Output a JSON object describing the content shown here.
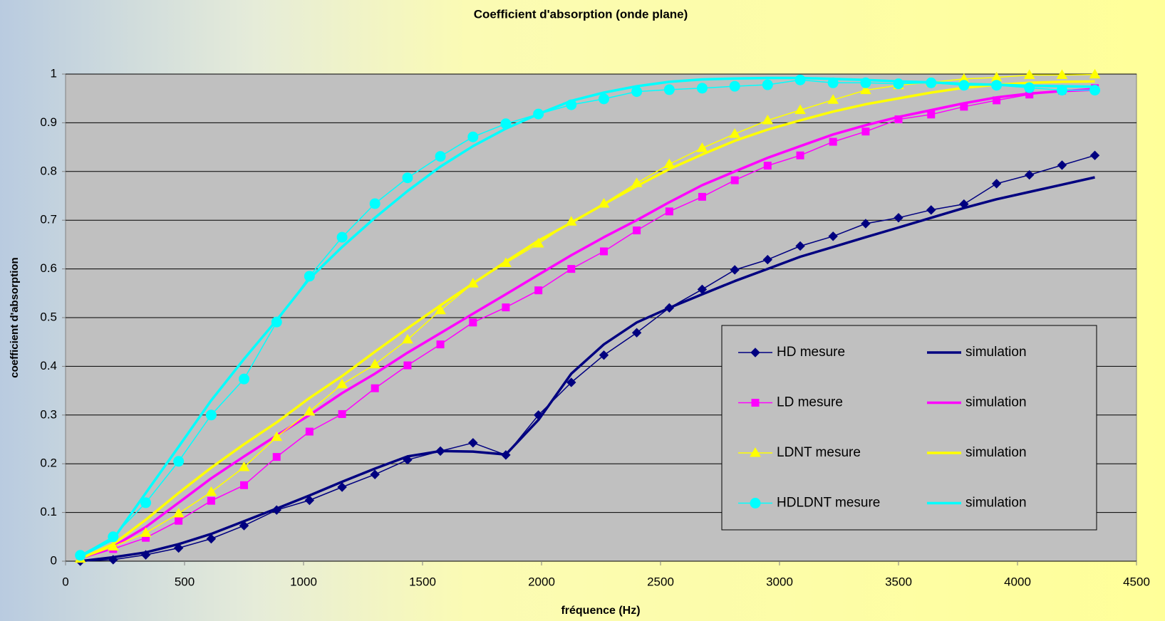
{
  "chart_data": {
    "type": "line",
    "title": "Coefficient d'absorption (onde plane)",
    "x_label": "fréquence (Hz)",
    "y_label": "coefficient d'absorption",
    "x": [
      62,
      200,
      337,
      475,
      612,
      750,
      887,
      1025,
      1162,
      1300,
      1437,
      1575,
      1712,
      1850,
      1987,
      2125,
      2262,
      2400,
      2537,
      2675,
      2812,
      2950,
      3087,
      3225,
      3362,
      3500,
      3637,
      3775,
      3912,
      4050,
      4187,
      4325
    ],
    "series": [
      {
        "name": "HD mesure",
        "color": "#000080",
        "marker": "diamond",
        "values": [
          0.0,
          0.003,
          0.013,
          0.027,
          0.046,
          0.073,
          0.105,
          0.125,
          0.152,
          0.178,
          0.208,
          0.226,
          0.243,
          0.218,
          0.3,
          0.367,
          0.423,
          0.469,
          0.52,
          0.558,
          0.598,
          0.619,
          0.647,
          0.667,
          0.693,
          0.705,
          0.721,
          0.733,
          0.775,
          0.793,
          0.813,
          0.833
        ]
      },
      {
        "name": "simulation",
        "color": "#000080",
        "values": [
          0.0,
          0.008,
          0.018,
          0.035,
          0.056,
          0.082,
          0.108,
          0.135,
          0.163,
          0.19,
          0.215,
          0.226,
          0.225,
          0.219,
          0.29,
          0.385,
          0.445,
          0.49,
          0.52,
          0.548,
          0.575,
          0.6,
          0.625,
          0.645,
          0.665,
          0.685,
          0.705,
          0.725,
          0.743,
          0.758,
          0.773,
          0.788
        ]
      },
      {
        "name": "LD mesure",
        "color": "#ff00ff",
        "marker": "square",
        "values": [
          0.005,
          0.025,
          0.048,
          0.083,
          0.124,
          0.156,
          0.214,
          0.266,
          0.302,
          0.355,
          0.402,
          0.445,
          0.49,
          0.521,
          0.556,
          0.6,
          0.636,
          0.679,
          0.718,
          0.748,
          0.782,
          0.812,
          0.833,
          0.861,
          0.882,
          0.907,
          0.917,
          0.933,
          0.946,
          0.958,
          0.966,
          0.971
        ]
      },
      {
        "name": "simulation",
        "color": "#ff00ff",
        "values": [
          0.005,
          0.03,
          0.07,
          0.12,
          0.17,
          0.215,
          0.258,
          0.3,
          0.345,
          0.385,
          0.428,
          0.468,
          0.508,
          0.548,
          0.588,
          0.628,
          0.665,
          0.7,
          0.737,
          0.772,
          0.8,
          0.828,
          0.852,
          0.876,
          0.895,
          0.912,
          0.926,
          0.94,
          0.952,
          0.96,
          0.965,
          0.968
        ]
      },
      {
        "name": "LDNT mesure",
        "color": "#ffff00",
        "marker": "triangle",
        "values": [
          0.005,
          0.03,
          0.058,
          0.098,
          0.142,
          0.193,
          0.255,
          0.307,
          0.363,
          0.404,
          0.455,
          0.515,
          0.57,
          0.612,
          0.652,
          0.697,
          0.734,
          0.776,
          0.815,
          0.848,
          0.877,
          0.905,
          0.926,
          0.947,
          0.967,
          0.977,
          0.983,
          0.99,
          0.993,
          0.998,
          0.998,
          0.999
        ]
      },
      {
        "name": "simulation",
        "color": "#ffff00",
        "values": [
          0.005,
          0.035,
          0.085,
          0.14,
          0.192,
          0.24,
          0.285,
          0.335,
          0.38,
          0.43,
          0.478,
          0.525,
          0.57,
          0.615,
          0.658,
          0.695,
          0.733,
          0.77,
          0.805,
          0.835,
          0.863,
          0.886,
          0.905,
          0.923,
          0.938,
          0.95,
          0.962,
          0.972,
          0.978,
          0.982,
          0.984,
          0.985
        ]
      },
      {
        "name": "HDLDNT mesure",
        "color": "#00ffff",
        "marker": "circle",
        "values": [
          0.012,
          0.05,
          0.12,
          0.205,
          0.3,
          0.374,
          0.491,
          0.585,
          0.665,
          0.734,
          0.787,
          0.831,
          0.871,
          0.898,
          0.918,
          0.937,
          0.949,
          0.964,
          0.968,
          0.971,
          0.975,
          0.978,
          0.988,
          0.982,
          0.982,
          0.98,
          0.982,
          0.977,
          0.977,
          0.972,
          0.967,
          0.967
        ]
      },
      {
        "name": "simulation",
        "color": "#00ffff",
        "values": [
          0.01,
          0.045,
          0.14,
          0.235,
          0.33,
          0.415,
          0.495,
          0.58,
          0.645,
          0.705,
          0.76,
          0.81,
          0.852,
          0.888,
          0.918,
          0.945,
          0.962,
          0.975,
          0.984,
          0.989,
          0.991,
          0.992,
          0.992,
          0.99,
          0.988,
          0.985,
          0.983,
          0.98,
          0.978,
          0.976,
          0.975,
          0.974
        ]
      }
    ],
    "xlim": [
      0,
      4500
    ],
    "xticks": [
      0,
      500,
      1000,
      1500,
      2000,
      2500,
      3000,
      3500,
      4000,
      4500
    ],
    "ylim": [
      0,
      1
    ],
    "yticks": [
      0,
      0.1,
      0.2,
      0.3,
      0.4,
      0.5,
      0.6,
      0.7,
      0.8,
      0.9,
      1
    ],
    "grid": true,
    "legend": "lower right"
  }
}
